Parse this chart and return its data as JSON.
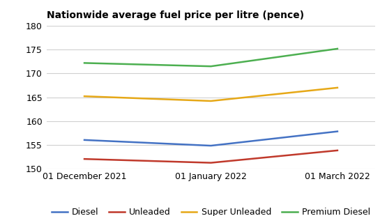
{
  "title": "Nationwide average fuel price per litre (pence)",
  "x_labels": [
    "01 December 2021",
    "01 January 2022",
    "01 March 2022"
  ],
  "x_positions": [
    0,
    1,
    2
  ],
  "series": {
    "Diesel": {
      "values": [
        156.0,
        154.8,
        157.8
      ],
      "color": "#4472c4"
    },
    "Unleaded": {
      "values": [
        152.0,
        151.2,
        153.8
      ],
      "color": "#c0392b"
    },
    "Super Unleaded": {
      "values": [
        165.2,
        164.2,
        167.0
      ],
      "color": "#e6a817"
    },
    "Premium Diesel": {
      "values": [
        172.2,
        171.5,
        175.2
      ],
      "color": "#4caf50"
    }
  },
  "ylim": [
    150,
    180
  ],
  "yticks": [
    150,
    155,
    160,
    165,
    170,
    175,
    180
  ],
  "background_color": "#ffffff",
  "grid_color": "#d0d0d0",
  "title_fontsize": 10,
  "legend_fontsize": 9,
  "tick_fontsize": 9
}
